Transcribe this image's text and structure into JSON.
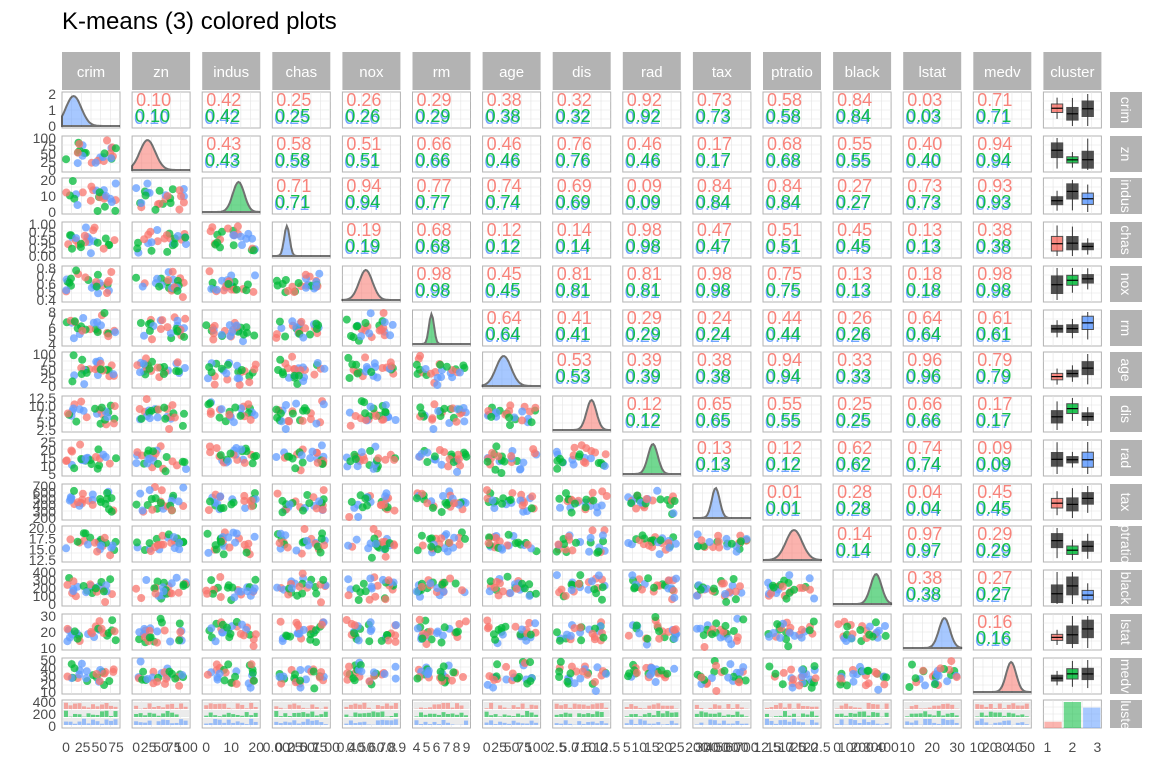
{
  "chart_data": {
    "type": "scatter-matrix",
    "title": "K-means (3) colored plots",
    "variables": [
      "crim",
      "zn",
      "indus",
      "chas",
      "nox",
      "rm",
      "age",
      "dis",
      "rad",
      "tax",
      "ptratio",
      "black",
      "lstat",
      "medv"
    ],
    "row_strip_labels": [
      "crim",
      "zn",
      "indus",
      "chas",
      "nox",
      "rm",
      "age",
      "dis",
      "rad",
      "tax",
      "ptratio",
      "black",
      "lstat",
      "medv",
      "cluster"
    ],
    "facet_labels": [
      "crim",
      "zn",
      "indus",
      "chas",
      "nox",
      "rm",
      "age",
      "dis",
      "rad",
      "tax",
      "ptratio",
      "black",
      "lstat",
      "medv",
      "cluster"
    ],
    "cluster_var": "cluster",
    "clusters": [
      {
        "name": "1",
        "color": "#F8766D"
      },
      {
        "name": "2",
        "color": "#00BA38"
      },
      {
        "name": "3",
        "color": "#619CFF"
      }
    ],
    "cluster_counts": [
      60,
      250,
      196
    ],
    "y_tick_labels": [
      [
        "0",
        "1",
        "2"
      ],
      [
        "0",
        "25",
        "50",
        "75",
        "100"
      ],
      [
        "0",
        "10",
        "20"
      ],
      [
        "0.00",
        "0.25",
        "0.50",
        "0.75",
        "1.00"
      ],
      [
        "0.4",
        "0.5",
        "0.6",
        "0.7",
        "0.8"
      ],
      [
        "4",
        "5",
        "6",
        "7",
        "8"
      ],
      [
        "0",
        "25",
        "50",
        "75",
        "100"
      ],
      [
        "2.5",
        "5.0",
        "7.5",
        "10.0",
        "12.5"
      ],
      [
        "5",
        "10",
        "15",
        "20",
        "25"
      ],
      [
        "200",
        "300",
        "400",
        "500",
        "600",
        "700"
      ],
      [
        "12.5",
        "15.0",
        "17.5",
        "20.0"
      ],
      [
        "0",
        "100",
        "200",
        "300",
        "400"
      ],
      [
        "10",
        "20",
        "30"
      ],
      [
        "10",
        "20",
        "30",
        "40",
        "50"
      ],
      [
        "0",
        "200",
        "400"
      ]
    ],
    "x_tick_labels": [
      [
        "0",
        "25",
        "50",
        "75"
      ],
      [
        "0",
        "25",
        "50",
        "75",
        "100"
      ],
      [
        "0",
        "10",
        "20"
      ],
      [
        "0.00",
        "0.25",
        "0.50",
        "0.75",
        "1.00"
      ],
      [
        "0.4",
        "0.5",
        "0.6",
        "0.7",
        "0.8",
        "0.9"
      ],
      [
        "4",
        "5",
        "6",
        "7",
        "8",
        "9"
      ],
      [
        "0",
        "25",
        "50",
        "75",
        "100"
      ],
      [
        "2.5",
        "5.0",
        "7.5",
        "10.0",
        "12.5"
      ],
      [
        "5",
        "10",
        "15",
        "20",
        "25"
      ],
      [
        "200",
        "300",
        "400",
        "500",
        "600",
        "700"
      ],
      [
        "12.5",
        "15.0",
        "17.5",
        "20.0",
        "22.5"
      ],
      [
        "0",
        "100",
        "200",
        "300",
        "400"
      ],
      [
        "10",
        "20",
        "30"
      ],
      [
        "10",
        "20",
        "30",
        "40",
        "50"
      ],
      [
        "1",
        "2",
        "3"
      ]
    ],
    "upper_corr_labels": [
      [
        "0.10",
        "0.42",
        "0.25",
        "0.26",
        "0.29",
        "0.38",
        "0.32",
        "0.92",
        "0.73",
        "0.58",
        "0.84",
        "0.03",
        "0.71"
      ],
      [
        "0.43",
        "0.58",
        "0.51",
        "0.66",
        "0.46",
        "0.76",
        "0.46",
        "0.17",
        "0.68",
        "0.55",
        "0.40",
        "0.94"
      ],
      [
        "0.71",
        "0.94",
        "0.77",
        "0.74",
        "0.69",
        "0.09",
        "0.84",
        "0.84",
        "0.27",
        "0.73",
        "0.93"
      ],
      [
        "0.19",
        "0.68",
        "0.12",
        "0.14",
        "0.98",
        "0.47",
        "0.51",
        "0.45",
        "0.13",
        "0.38"
      ],
      [
        "0.98",
        "0.45",
        "0.81",
        "0.81",
        "0.98",
        "0.75",
        "0.13",
        "0.18",
        "0.98"
      ],
      [
        "0.64",
        "0.41",
        "0.29",
        "0.24",
        "0.44",
        "0.26",
        "0.64",
        "0.61"
      ],
      [
        "0.53",
        "0.39",
        "0.38",
        "0.94",
        "0.33",
        "0.96",
        "0.79"
      ],
      [
        "0.12",
        "0.65",
        "0.55",
        "0.25",
        "0.66",
        "0.17"
      ],
      [
        "0.13",
        "0.12",
        "0.62",
        "0.74",
        "0.09"
      ],
      [
        "0.01",
        "0.28",
        "0.04",
        "0.45"
      ],
      [
        "0.14",
        "0.97",
        "0.29"
      ],
      [
        "0.38",
        "0.27"
      ],
      [
        "0.16"
      ]
    ]
  }
}
